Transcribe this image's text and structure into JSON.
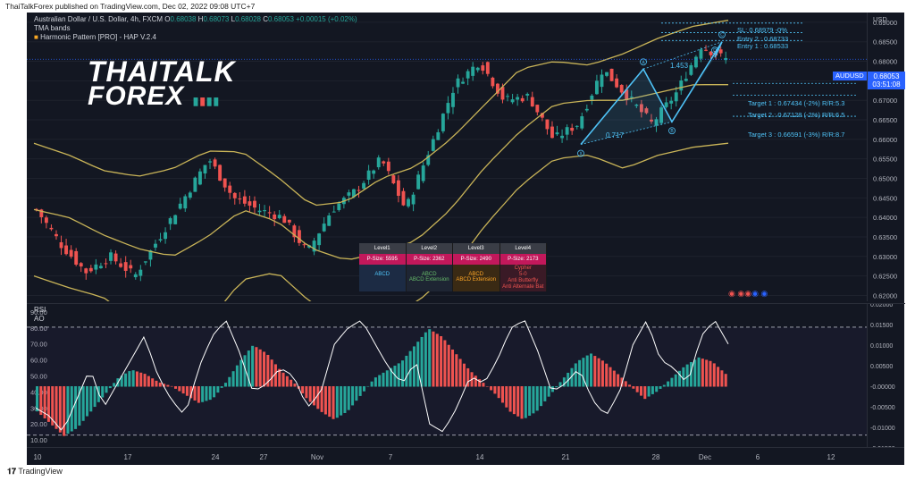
{
  "header": {
    "published": "ThaiTalkForex published on TradingView.com, Dec 02, 2022 09:08 UTC+7"
  },
  "legend": {
    "title": "Australian Dollar / U.S. Dollar, 4h, FXCM",
    "o_label": "O",
    "o": "0.68038",
    "h_label": "H",
    "h": "0.68073",
    "l_label": "L",
    "l": "0.68028",
    "c_label": "C",
    "c": "0.68053",
    "chg": "+0.00015 (+0.02%)",
    "ind1": "TMA bands",
    "ind2": "Harmonic Pattern [PRO] - HAP V.2.4"
  },
  "logo": {
    "line1": "THAITALK",
    "line2": "FOREX"
  },
  "colors": {
    "bg": "#131722",
    "up": "#26a69a",
    "down": "#ef5350",
    "band": "#c9b458",
    "pattern": "#4fc3f7",
    "rsi": "#ffffff",
    "ao_up": "#26a69a",
    "ao_down": "#ef5350",
    "magenta": "#c2185b"
  },
  "targets": {
    "sl": "SL: 0.68979 -0%",
    "entry2": "Entry 2 : 0.68733",
    "entry1": "Entry 1 : 0.68533",
    "t1": "Target 1 : 0.67434 (-2%) R/R:5.3",
    "t2": "Target 2 : 0.67128 (-2%) R/R:6.5",
    "t3": "Target 3 : 0.66591 (-3%) R/R:8.7"
  },
  "pattern_labels": {
    "x": "X",
    "a": "A",
    "b": "B",
    "c": "C",
    "d": "D",
    "ab": "0.717",
    "bc": "1.453"
  },
  "levels": {
    "headers": [
      "Level1",
      "Level2",
      "Level3",
      "Level4"
    ],
    "psize": [
      "P-Size: 5595",
      "P-Size: 2362",
      "P-Size: 2490",
      "P-Size: 2173"
    ],
    "patterns": [
      [
        "ABCD"
      ],
      [
        "ABCD",
        "ABCD Extension"
      ],
      [
        "ABCD",
        "ABCD Extension"
      ],
      [
        "Cypher",
        "5-0",
        "Anti Butterfly",
        "Anti Alternate Bat"
      ]
    ]
  },
  "price_axis": {
    "currency": "USD",
    "symbol": "AUDUSD",
    "price": "0.68053",
    "timer": "03:51:08",
    "ticks": [
      "0.69000",
      "0.68500",
      "0.68000",
      "0.67500",
      "0.67000",
      "0.66500",
      "0.66000",
      "0.65500",
      "0.65000",
      "0.64500",
      "0.64000",
      "0.63500",
      "0.63000",
      "0.62500",
      "0.62000"
    ]
  },
  "rsi_pane": {
    "label1": "RSI",
    "label2": "AO",
    "left_ticks": [
      "90.00",
      "80.00",
      "70.00",
      "60.00",
      "50.00",
      "40.00",
      "30.00",
      "20.00",
      "10.00"
    ],
    "right_ticks": [
      "0.02000",
      "0.01500",
      "0.01000",
      "0.00500",
      "-0.00000",
      "-0.00500",
      "-0.01000",
      "-0.01500"
    ]
  },
  "time_axis": [
    "10",
    "17",
    "24",
    "27",
    "Nov",
    "7",
    "14",
    "21",
    "28",
    "Dec",
    "6",
    "12"
  ],
  "footer": {
    "brand": "TradingView"
  },
  "chart_data": {
    "type": "candlestick",
    "symbol": "AUDUSD",
    "timeframe": "4h",
    "ylim": [
      0.6185,
      0.6925
    ],
    "tma_upper": [
      0.659,
      0.656,
      0.652,
      0.6505,
      0.6525,
      0.657,
      0.6568,
      0.6505,
      0.643,
      0.644,
      0.65,
      0.653,
      0.66,
      0.669,
      0.678,
      0.68,
      0.679,
      0.682,
      0.686,
      0.689,
      0.6905
    ],
    "tma_mid": [
      0.642,
      0.64,
      0.6355,
      0.632,
      0.63,
      0.635,
      0.642,
      0.639,
      0.632,
      0.629,
      0.631,
      0.634,
      0.642,
      0.653,
      0.662,
      0.669,
      0.67,
      0.67,
      0.672,
      0.674,
      0.674
    ],
    "tma_lower": [
      0.625,
      0.622,
      0.6195,
      0.613,
      0.612,
      0.613,
      0.624,
      0.626,
      0.618,
      0.613,
      0.6145,
      0.618,
      0.626,
      0.638,
      0.648,
      0.655,
      0.656,
      0.6525,
      0.656,
      0.658,
      0.659
    ],
    "close_path": [
      0.642,
      0.633,
      0.626,
      0.63,
      0.625,
      0.635,
      0.645,
      0.655,
      0.645,
      0.642,
      0.64,
      0.631,
      0.642,
      0.647,
      0.655,
      0.642,
      0.658,
      0.674,
      0.68,
      0.67,
      0.671,
      0.66,
      0.664,
      0.678,
      0.671,
      0.664,
      0.672,
      0.684,
      0.6805
    ],
    "pattern_points": [
      0.6587,
      0.678,
      0.6645,
      0.685,
      0.681
    ],
    "targets": [
      0.68979,
      0.68733,
      0.68533,
      0.67434,
      0.67128,
      0.66591
    ],
    "rsi": [
      30,
      25,
      15,
      35,
      55,
      30,
      45,
      60,
      75,
      50,
      35,
      25,
      55,
      75,
      85,
      65,
      40,
      45,
      55,
      50,
      30,
      40,
      70,
      80,
      85,
      70,
      55,
      45,
      60,
      20,
      15,
      30,
      50,
      45,
      60,
      80,
      85,
      65,
      40,
      45,
      55,
      35,
      25,
      40,
      70,
      85,
      60,
      55,
      45,
      75,
      85,
      70
    ],
    "ao_scale": [
      -0.015,
      0.02
    ],
    "ao": [
      -0.006,
      -0.009,
      -0.012,
      -0.01,
      -0.006,
      -0.002,
      0.002,
      0.004,
      0.003,
      0.001,
      0.0,
      -0.002,
      -0.004,
      -0.003,
      0.001,
      0.006,
      0.01,
      0.008,
      0.004,
      0.001,
      -0.003,
      -0.006,
      -0.008,
      -0.006,
      -0.002,
      0.002,
      0.004,
      0.006,
      0.01,
      0.014,
      0.012,
      0.008,
      0.004,
      0.001,
      -0.002,
      -0.006,
      -0.008,
      -0.006,
      -0.002,
      0.002,
      0.006,
      0.008,
      0.006,
      0.003,
      0.0,
      -0.003,
      -0.001,
      0.002,
      0.005,
      0.007,
      0.006,
      0.003
    ]
  }
}
